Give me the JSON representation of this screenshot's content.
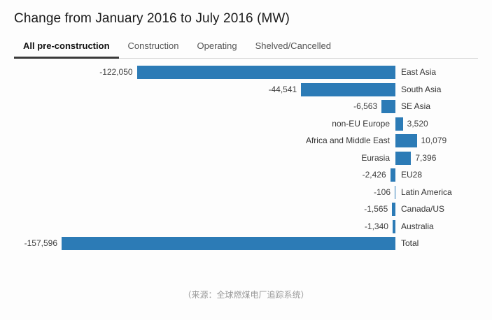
{
  "title": "Change from January 2016 to July 2016 (MW)",
  "tabs": [
    {
      "label": "All pre-construction",
      "active": true
    },
    {
      "label": "Construction",
      "active": false
    },
    {
      "label": "Operating",
      "active": false
    },
    {
      "label": "Shelved/Cancelled",
      "active": false
    }
  ],
  "chart_data": {
    "type": "bar",
    "orientation": "horizontal",
    "title": "Change from January 2016 to July 2016 (MW)",
    "categories": [
      "East Asia",
      "South Asia",
      "SE Asia",
      "non-EU Europe",
      "Africa and Middle East",
      "Eurasia",
      "EU28",
      "Latin America",
      "Canada/US",
      "Australia",
      "Total"
    ],
    "values": [
      -122050,
      -44541,
      -6563,
      3520,
      10079,
      7396,
      -2426,
      -106,
      -1565,
      -1340,
      -157596
    ],
    "value_labels": [
      "-122,050",
      "-44,541",
      "-6,563",
      "3,520",
      "10,079",
      "7,396",
      "-2,426",
      "-106",
      "-1,565",
      "-1,340",
      "-157,596"
    ],
    "bar_color": "#2c7bb6",
    "xlim": [
      -160000,
      15000
    ],
    "grid": false,
    "legend": "none",
    "value_unit": "MW"
  },
  "caption": "（来源：全球燃煤电厂追踪系统）"
}
